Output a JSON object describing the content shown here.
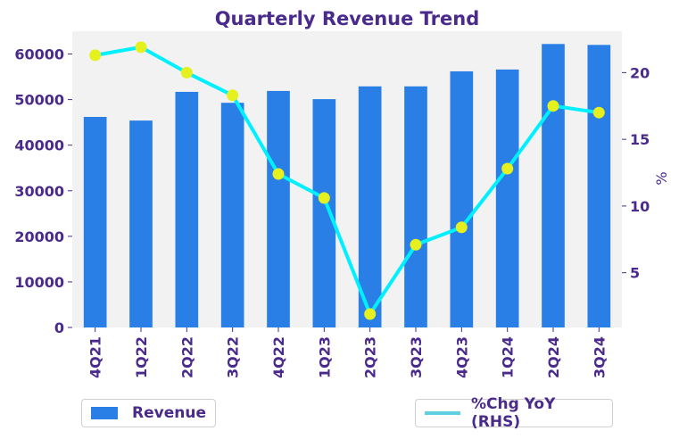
{
  "chart_data": {
    "type": "bar",
    "title": "Quarterly Revenue Trend",
    "categories": [
      "4Q21",
      "1Q22",
      "2Q22",
      "3Q22",
      "4Q22",
      "1Q23",
      "2Q23",
      "3Q23",
      "4Q23",
      "1Q24",
      "2Q24",
      "3Q24"
    ],
    "series": [
      {
        "name": "Revenue",
        "type": "bar",
        "axis": "left",
        "values": [
          46200,
          45400,
          51700,
          49300,
          51900,
          50100,
          52900,
          52900,
          56200,
          56600,
          62200,
          62000
        ]
      },
      {
        "name": "%Chg YoY (RHS)",
        "type": "line",
        "axis": "right",
        "values": [
          21.3,
          21.9,
          20.0,
          18.3,
          12.4,
          10.6,
          1.9,
          7.1,
          8.4,
          12.8,
          17.5,
          17.0
        ]
      }
    ],
    "ylabel": "",
    "y2label": "%",
    "ylim": [
      0,
      65000
    ],
    "y2lim": [
      0.9,
      23.1
    ],
    "yticks": [
      0,
      10000,
      20000,
      30000,
      40000,
      50000,
      60000
    ],
    "y2ticks": [
      5,
      10,
      15,
      20
    ],
    "grid": false,
    "legend": "bottom",
    "colors": {
      "bar": "#2a7fe6",
      "line": "#00f0ff",
      "marker": "#e6f01e",
      "text": "#4a2a8a",
      "plot_bg": "#f2f2f2",
      "legend_line": "#5fd0e0"
    }
  }
}
